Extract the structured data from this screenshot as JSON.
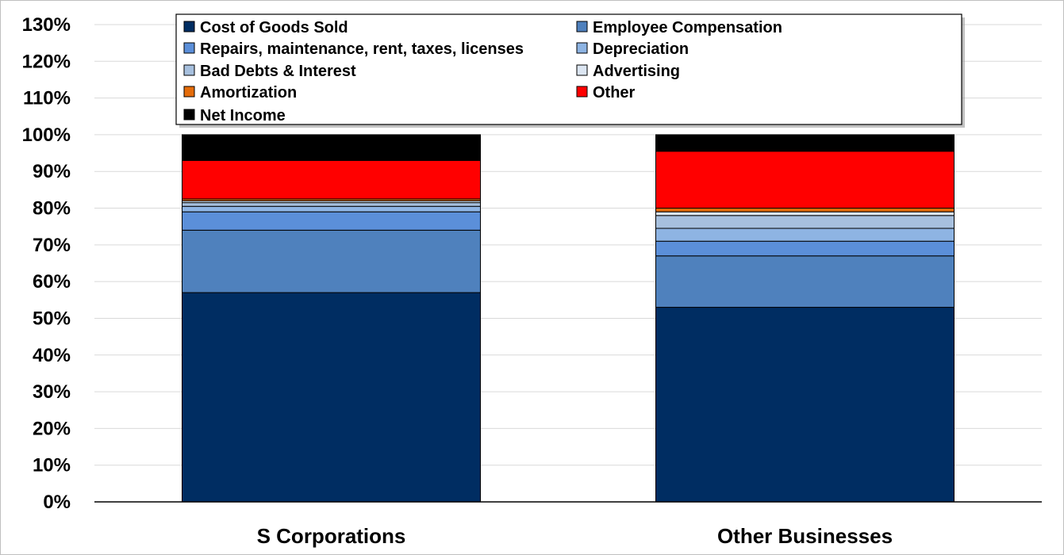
{
  "chart_data": {
    "type": "bar",
    "stacked": true,
    "categories": [
      "S Corporations",
      "Other Businesses"
    ],
    "series": [
      {
        "name": "Cost of Goods Sold",
        "values": [
          57,
          53
        ],
        "color": "#002d62"
      },
      {
        "name": "Employee Compensation",
        "values": [
          17,
          14
        ],
        "color": "#4f81bd"
      },
      {
        "name": "Repairs, maintenance, rent, taxes, licenses",
        "values": [
          5,
          4
        ],
        "color": "#5b8fd9"
      },
      {
        "name": "Depreciation",
        "values": [
          1.5,
          3.5
        ],
        "color": "#8eb4e3"
      },
      {
        "name": "Bad Debts & Interest",
        "values": [
          1,
          3.5
        ],
        "color": "#a7c0de"
      },
      {
        "name": "Advertising",
        "values": [
          0.5,
          1
        ],
        "color": "#dce6f2"
      },
      {
        "name": "Amortization",
        "values": [
          0.5,
          1
        ],
        "color": "#e46c0a"
      },
      {
        "name": "Other",
        "values": [
          10.5,
          15.5
        ],
        "color": "#ff0000"
      },
      {
        "name": "Net Income",
        "values": [
          7,
          4.5
        ],
        "color": "#000000"
      }
    ],
    "yticks": [
      "0%",
      "10%",
      "20%",
      "30%",
      "40%",
      "50%",
      "60%",
      "70%",
      "80%",
      "90%",
      "100%",
      "110%",
      "120%",
      "130%"
    ],
    "ylim": [
      0,
      130
    ],
    "grid": true,
    "legend_position": "top"
  }
}
